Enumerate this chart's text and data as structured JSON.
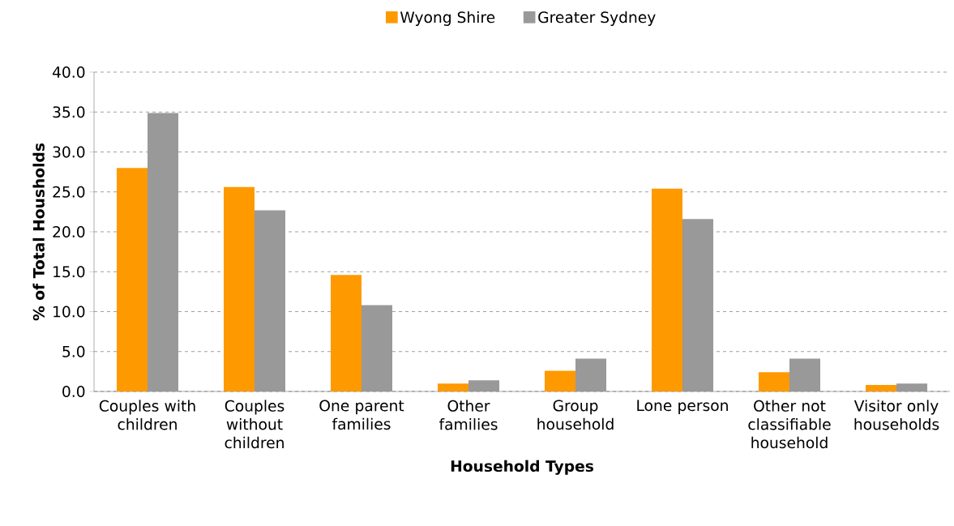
{
  "chart_data": {
    "type": "bar",
    "xlabel": "Household Types",
    "ylabel": "% of Total Housholds",
    "categories": [
      "Couples with children",
      "Couples without children",
      "One parent families",
      "Other families",
      "Group household",
      "Lone person",
      "Other not classifiable household",
      "Visitor only households"
    ],
    "series": [
      {
        "name": "Wyong Shire",
        "color": "#ff9900",
        "values": [
          28.0,
          25.6,
          14.6,
          1.0,
          2.6,
          25.4,
          2.4,
          0.8
        ]
      },
      {
        "name": "Greater Sydney",
        "color": "#999999",
        "values": [
          34.9,
          22.7,
          10.8,
          1.4,
          4.1,
          21.6,
          4.1,
          1.0
        ]
      }
    ],
    "ylim": [
      0,
      40
    ],
    "yticks": [
      {
        "value": 0,
        "label": "0.0"
      },
      {
        "value": 5,
        "label": "5.0"
      },
      {
        "value": 10,
        "label": "10.0"
      },
      {
        "value": 15,
        "label": "15.0"
      },
      {
        "value": 20,
        "label": "20.0"
      },
      {
        "value": 25,
        "label": "25.0"
      },
      {
        "value": 30,
        "label": "30.0"
      },
      {
        "value": 35,
        "label": "35.0"
      },
      {
        "value": 40,
        "label": "40.0"
      }
    ],
    "grid": "y",
    "legend": "top"
  }
}
